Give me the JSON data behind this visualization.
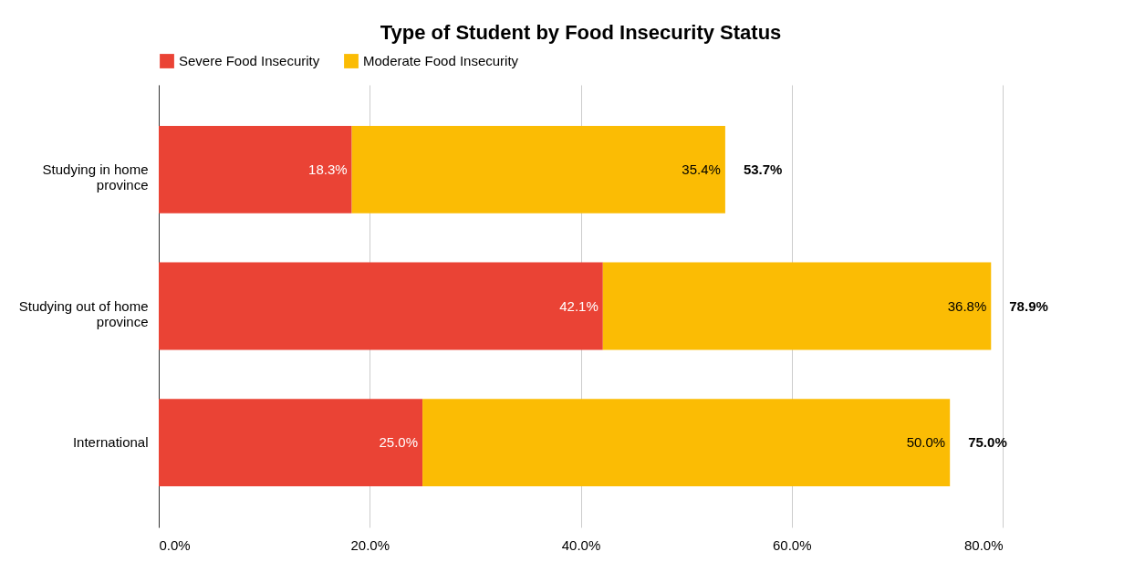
{
  "chart_data": {
    "type": "bar",
    "orientation": "horizontal",
    "stacked": true,
    "title": "Type of Student by Food Insecurity Status",
    "categories": [
      "Studying in home province",
      "Studying out of home province",
      "International"
    ],
    "series": [
      {
        "name": "Severe Food Insecurity",
        "color": "#ea4335",
        "values": [
          18.3,
          42.1,
          25.0
        ],
        "value_labels": [
          "18.3%",
          "42.1%",
          "25.0%"
        ]
      },
      {
        "name": "Moderate Food Insecurity",
        "color": "#fbbc04",
        "values": [
          35.4,
          36.8,
          50.0
        ],
        "value_labels": [
          "35.4%",
          "36.8%",
          "50.0%"
        ]
      }
    ],
    "totals": [
      "53.7%",
      "78.9%",
      "75.0%"
    ],
    "xlim": [
      0,
      80
    ],
    "xticks": [
      {
        "value": 0,
        "label": "0.0%"
      },
      {
        "value": 20,
        "label": "20.0%"
      },
      {
        "value": 40,
        "label": "40.0%"
      },
      {
        "value": 60,
        "label": "60.0%"
      },
      {
        "value": 80,
        "label": "80.0%"
      }
    ],
    "grid": "x",
    "legend": "top"
  }
}
